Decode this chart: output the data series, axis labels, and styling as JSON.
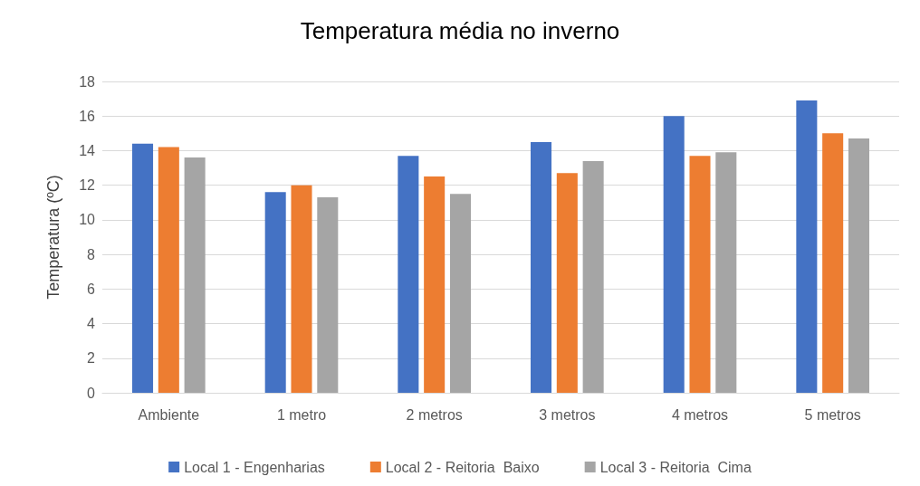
{
  "chart_data": {
    "type": "bar",
    "title": "Temperatura média no inverno",
    "ylabel": "Temperatura (ºC)",
    "categories": [
      "Ambiente",
      "1 metro",
      "2 metros",
      "3 metros",
      "4 metros",
      "5 metros"
    ],
    "series": [
      {
        "name": "Local 1 - Engenharias",
        "color": "#4472c4",
        "values": [
          14.4,
          11.6,
          13.7,
          14.5,
          16.0,
          16.9
        ]
      },
      {
        "name": "Local 2 - Reitoria  Baixo",
        "color": "#ed7d31",
        "values": [
          14.2,
          12.0,
          12.5,
          12.7,
          13.7,
          15.0
        ]
      },
      {
        "name": "Local 3 - Reitoria  Cima",
        "color": "#a5a5a5",
        "values": [
          13.6,
          11.3,
          11.5,
          13.4,
          13.9,
          14.7
        ]
      }
    ],
    "ylim": [
      0,
      18
    ],
    "yticks": [
      0,
      2,
      4,
      6,
      8,
      10,
      12,
      14,
      16,
      18
    ],
    "grid": "y",
    "legend": "bottom"
  }
}
